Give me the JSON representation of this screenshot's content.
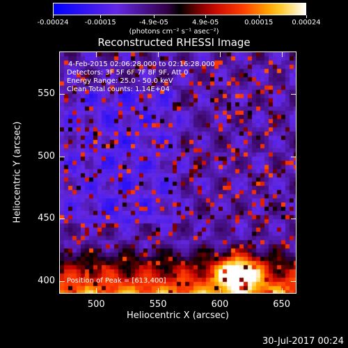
{
  "colorbar": {
    "tick_labels": [
      "-0.00024",
      "-0.00015",
      "-4.9e-05",
      "4.9e-05",
      "0.00015",
      "0.00024"
    ],
    "tick_values": [
      -0.00024,
      -0.00015,
      -4.9e-05,
      4.9e-05,
      0.00015,
      0.00024
    ],
    "range": [
      -0.00024,
      0.00024
    ],
    "units": "(photons cm⁻² s⁻¹ asec⁻²)"
  },
  "chart_data": {
    "type": "heatmap",
    "title": "Reconstructed RHESSI Image",
    "xlabel": "Heliocentric X (arcsec)",
    "ylabel": "Heliocentric Y (arcsec)",
    "xlim": [
      470,
      662
    ],
    "ylim": [
      390,
      584
    ],
    "xticks": [
      500,
      550,
      600,
      650
    ],
    "yticks": [
      400,
      450,
      500,
      550
    ],
    "colormap": "blue-purple-red-yellow-white",
    "peak_region": {
      "x_range": [
        590,
        625
      ],
      "y_range": [
        395,
        420
      ]
    }
  },
  "annotations": {
    "time_range": "4-Feb-2015 02:06:28.000 to 02:16:28.000",
    "detectors": "Detectors: 3F 5F 6F 7F 8F 9F, Att 0",
    "energy": "Energy Range: 25.0 - 50.0 keV",
    "clean": "Clean     Total counts: 1.14E+04",
    "peak": "Position of Peak = [613,400]"
  },
  "timestamp": "30-Jul-2017 00:24"
}
